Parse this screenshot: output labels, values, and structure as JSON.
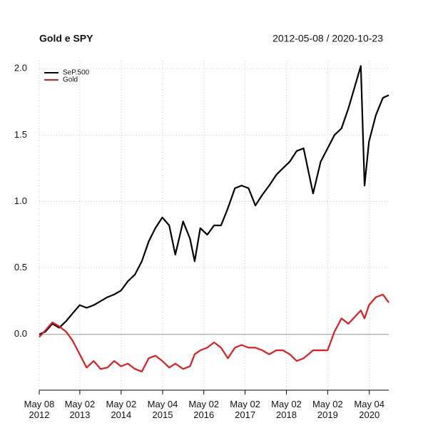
{
  "chart_data": {
    "type": "line",
    "title": "Gold e SPY",
    "subtitle": "2012-05-08 / 2020-10-23",
    "x": [
      "2012-05-08",
      "2012-07-01",
      "2012-09-01",
      "2012-11-01",
      "2013-01-01",
      "2013-03-01",
      "2013-05-01",
      "2013-07-01",
      "2013-09-01",
      "2013-11-01",
      "2014-01-01",
      "2014-03-01",
      "2014-05-01",
      "2014-07-01",
      "2014-09-01",
      "2014-11-01",
      "2015-01-01",
      "2015-03-01",
      "2015-05-01",
      "2015-07-01",
      "2015-08-24",
      "2015-11-01",
      "2016-01-01",
      "2016-02-11",
      "2016-04-01",
      "2016-06-01",
      "2016-08-01",
      "2016-10-01",
      "2016-12-01",
      "2017-02-01",
      "2017-04-01",
      "2017-06-01",
      "2017-08-01",
      "2017-10-01",
      "2017-12-01",
      "2018-02-01",
      "2018-04-01",
      "2018-06-01",
      "2018-08-01",
      "2018-10-01",
      "2018-12-24",
      "2019-03-01",
      "2019-05-01",
      "2019-07-01",
      "2019-09-01",
      "2019-11-01",
      "2020-02-19",
      "2020-03-23",
      "2020-05-01",
      "2020-07-01",
      "2020-09-01",
      "2020-10-23"
    ],
    "series": [
      {
        "name": "SeP.500",
        "color": "#000000",
        "values": [
          0.0,
          0.02,
          0.08,
          0.05,
          0.1,
          0.16,
          0.22,
          0.2,
          0.22,
          0.25,
          0.28,
          0.3,
          0.33,
          0.4,
          0.45,
          0.55,
          0.7,
          0.8,
          0.88,
          0.82,
          0.6,
          0.85,
          0.72,
          0.55,
          0.8,
          0.75,
          0.82,
          0.82,
          0.95,
          1.1,
          1.12,
          1.1,
          0.97,
          1.05,
          1.12,
          1.2,
          1.25,
          1.3,
          1.38,
          1.4,
          1.06,
          1.3,
          1.4,
          1.5,
          1.55,
          1.7,
          2.02,
          1.12,
          1.45,
          1.65,
          1.78,
          1.8
        ]
      },
      {
        "name": "Gold",
        "color": "#e41a1c",
        "values": [
          -0.02,
          0.03,
          0.09,
          0.06,
          0.02,
          -0.05,
          -0.15,
          -0.25,
          -0.2,
          -0.26,
          -0.25,
          -0.2,
          -0.24,
          -0.22,
          -0.26,
          -0.28,
          -0.18,
          -0.16,
          -0.2,
          -0.25,
          -0.22,
          -0.26,
          -0.24,
          -0.15,
          -0.12,
          -0.1,
          -0.06,
          -0.1,
          -0.18,
          -0.1,
          -0.08,
          -0.1,
          -0.1,
          -0.12,
          -0.15,
          -0.12,
          -0.12,
          -0.15,
          -0.2,
          -0.18,
          -0.12,
          -0.12,
          -0.12,
          0.02,
          0.12,
          0.08,
          0.18,
          0.12,
          0.22,
          0.28,
          0.3,
          0.24
        ]
      }
    ],
    "xlim": [
      "2012-05-08",
      "2020-10-23"
    ],
    "xticks": [
      {
        "value": "2012-05-08",
        "label": "May 08\n2012"
      },
      {
        "value": "2013-05-02",
        "label": "May 02\n2013"
      },
      {
        "value": "2014-05-02",
        "label": "May 02\n2014"
      },
      {
        "value": "2015-05-04",
        "label": "May 04\n2015"
      },
      {
        "value": "2016-05-02",
        "label": "May 02\n2016"
      },
      {
        "value": "2017-05-02",
        "label": "May 02\n2017"
      },
      {
        "value": "2018-05-02",
        "label": "May 02\n2018"
      },
      {
        "value": "2019-05-02",
        "label": "May 02\n2019"
      },
      {
        "value": "2020-05-04",
        "label": "May 04\n2020"
      }
    ],
    "ylim": [
      -0.42,
      2.06
    ],
    "yticks": [
      {
        "value": 0,
        "label": "0.0"
      },
      0.5,
      {
        "value": 1,
        "label": "1.0"
      },
      1.5,
      {
        "value": 2,
        "label": "2.0"
      }
    ],
    "hline": 0,
    "grid": true,
    "legend": "top-left"
  }
}
